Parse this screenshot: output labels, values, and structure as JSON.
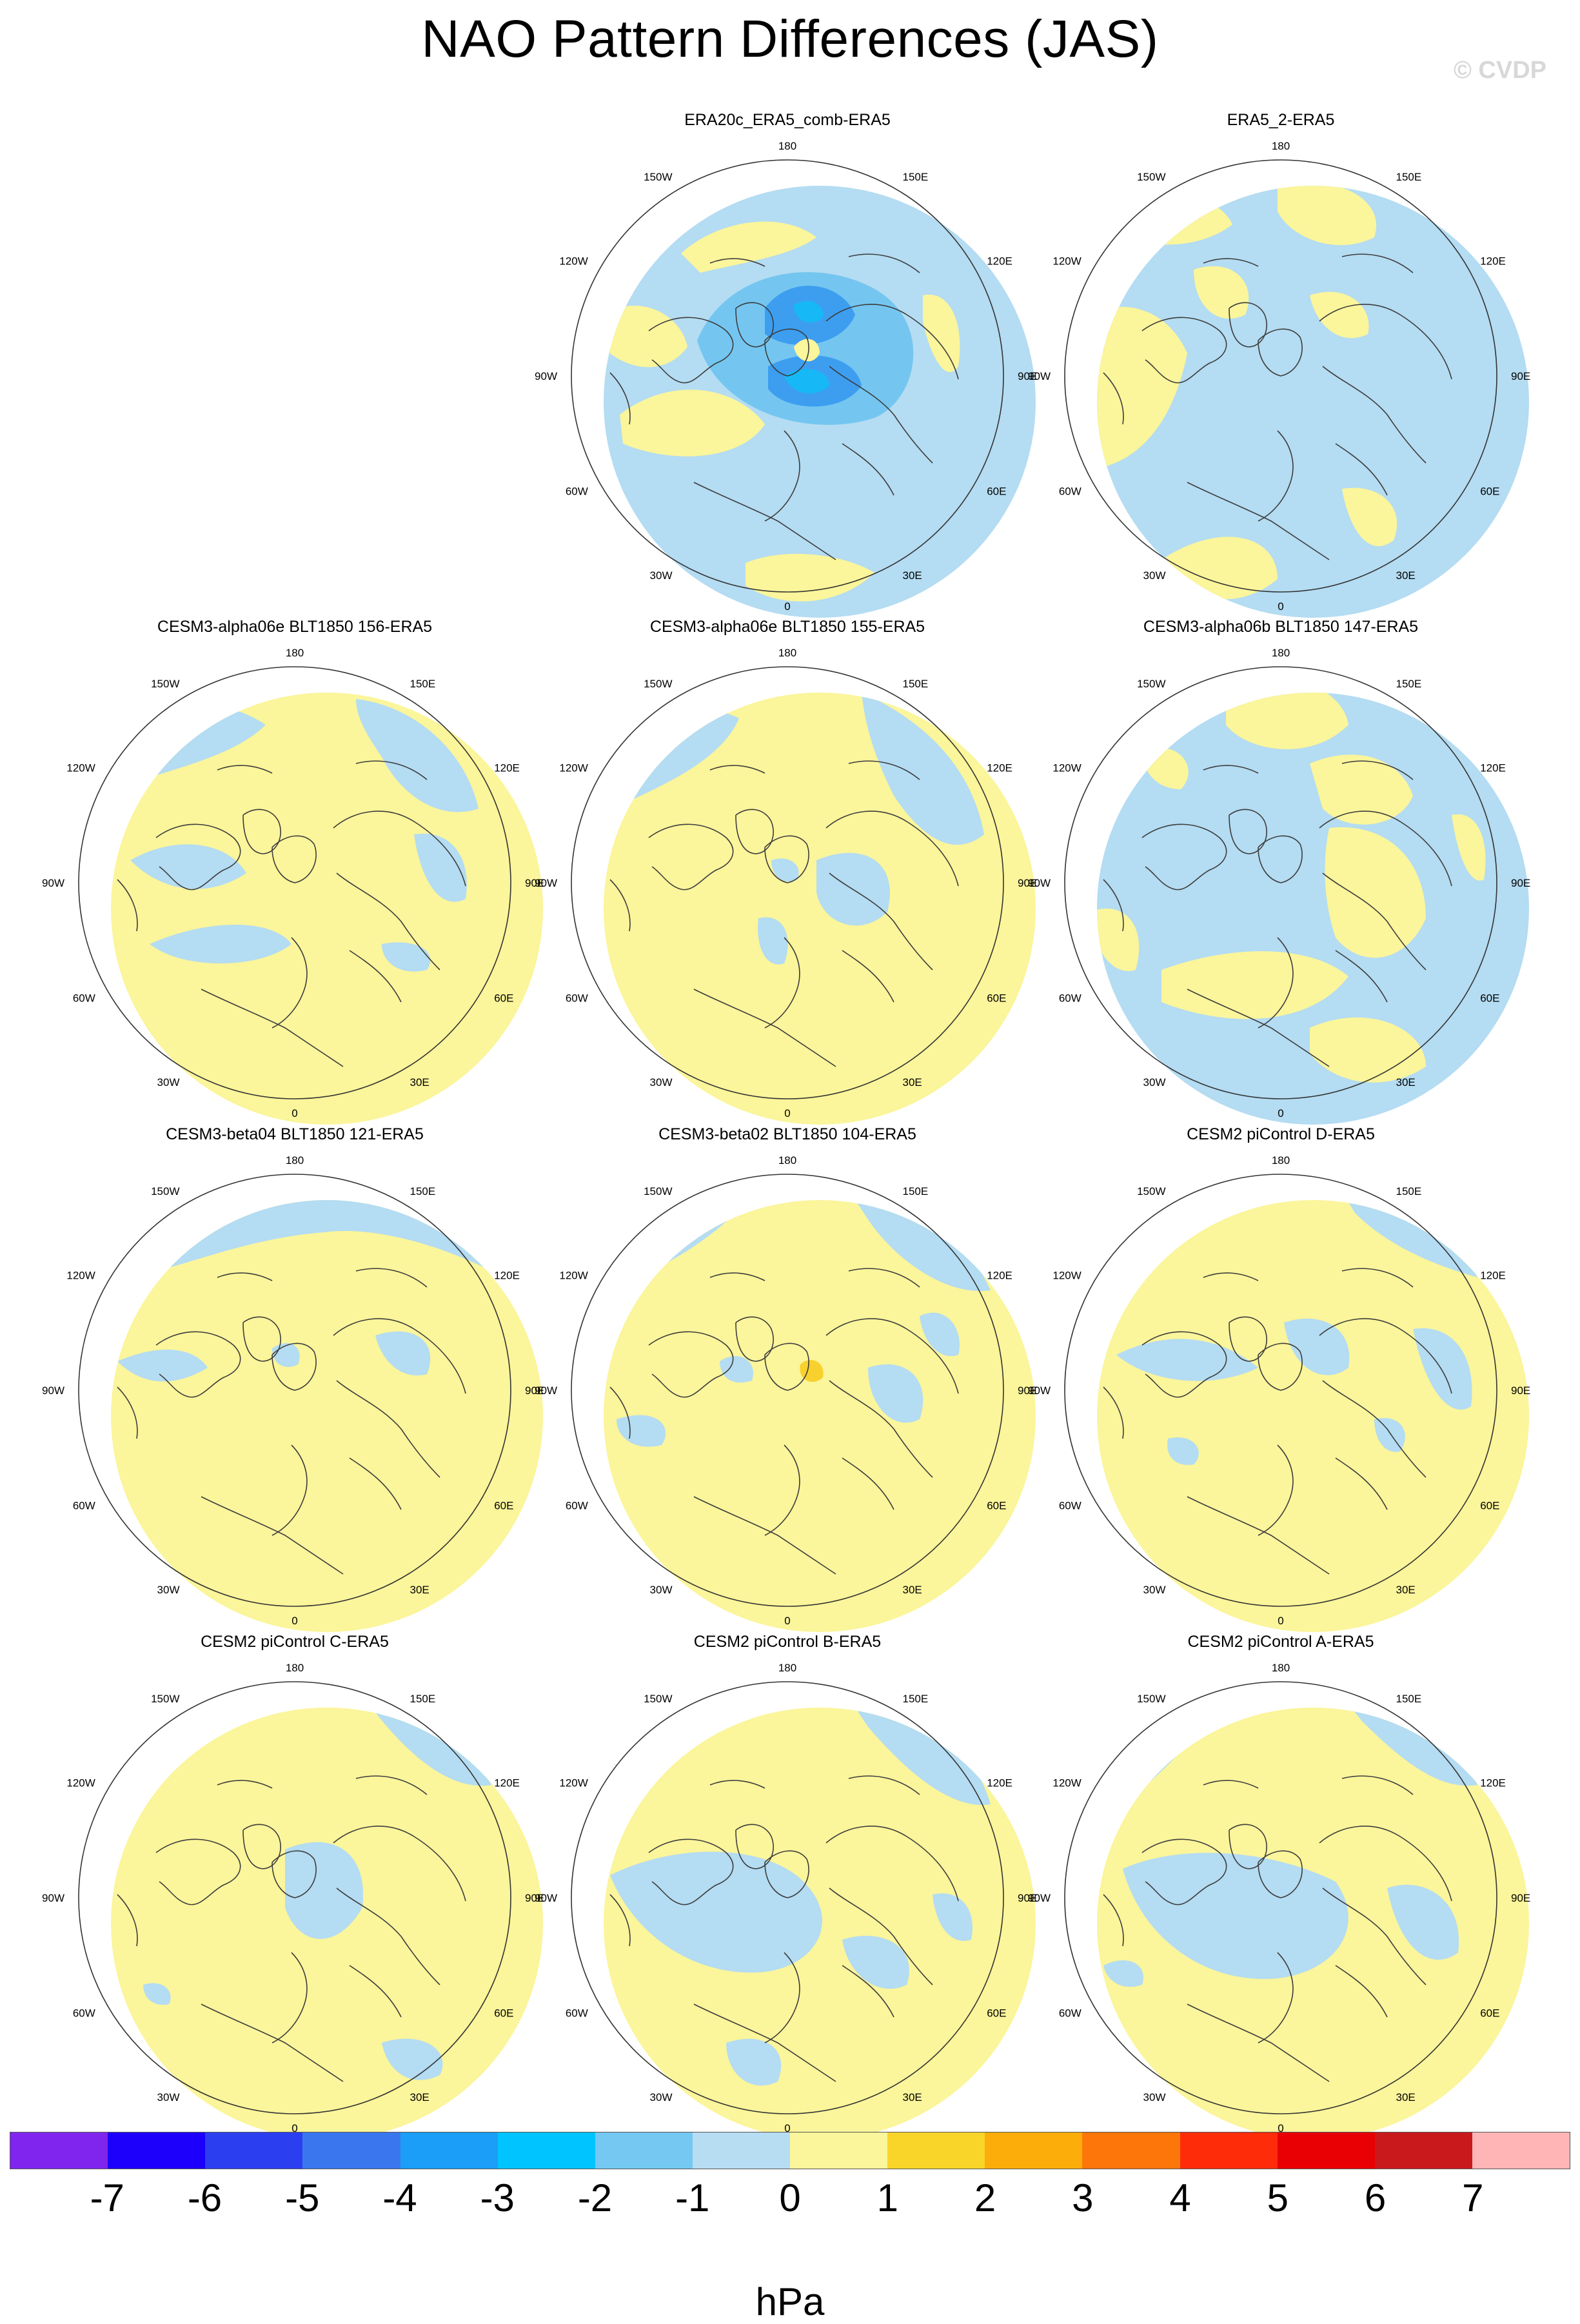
{
  "title": "NAO Pattern Differences (JAS)",
  "watermark": "© CVDP",
  "map_labels": {
    "top": "180",
    "bottom": "0",
    "left": "90W",
    "right": "90E",
    "upper_left_outer": "120W",
    "upper_left_inner": "150W",
    "upper_right_inner": "150E",
    "upper_right_outer": "120E",
    "lower_left_outer": "60W",
    "lower_left_inner": "30W",
    "lower_right_inner": "30E",
    "lower_right_outer": "60E"
  },
  "colors": {
    "pale_blue": "#b4dcf2",
    "pale_yellow": "#fbf59b",
    "mid_blue": "#74c6f0",
    "blue": "#3d9ef0",
    "cyan": "#16b8f5",
    "gold": "#f8d12e",
    "coast": "#3c3c3c"
  },
  "panels": [
    {
      "title": "ERA20c_ERA5_comb-ERA5",
      "base": "blue"
    },
    {
      "title": "ERA5_2-ERA5",
      "base": "blue"
    },
    {
      "title": "CESM3-alpha06e BLT1850 156-ERA5",
      "base": "yellow"
    },
    {
      "title": "CESM3-alpha06e BLT1850 155-ERA5",
      "base": "yellow"
    },
    {
      "title": "CESM3-alpha06b BLT1850 147-ERA5",
      "base": "blue"
    },
    {
      "title": "CESM3-beta04 BLT1850 121-ERA5",
      "base": "yellow"
    },
    {
      "title": "CESM3-beta02 BLT1850 104-ERA5",
      "base": "yellow"
    },
    {
      "title": "CESM2 piControl D-ERA5",
      "base": "yellow"
    },
    {
      "title": "CESM2 piControl C-ERA5",
      "base": "yellow"
    },
    {
      "title": "CESM2 piControl B-ERA5",
      "base": "yellow"
    },
    {
      "title": "CESM2 piControl A-ERA5",
      "base": "yellow"
    }
  ],
  "colorbar": {
    "unit": "hPa",
    "colors": [
      "#7f25ee",
      "#1c00fb",
      "#2b3ff0",
      "#3a77ef",
      "#1a9ef7",
      "#00c4ff",
      "#74c8f2",
      "#b7ddf3",
      "#fbf59b",
      "#f9d52a",
      "#fdad0a",
      "#fd760a",
      "#ff2c09",
      "#e80005",
      "#c9191c",
      "#ffb5b5"
    ],
    "labels": [
      "-7",
      "-6",
      "-5",
      "-4",
      "-3",
      "-2",
      "-1",
      "0",
      "1",
      "2",
      "3",
      "4",
      "5",
      "6",
      "7"
    ]
  }
}
